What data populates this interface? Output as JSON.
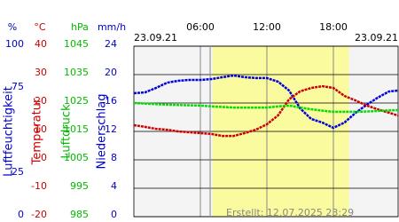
{
  "chart_data": {
    "type": "line",
    "date_left": "23.09.21",
    "date_right": "23.09.21",
    "footer": "Erstellt: 12.07.2025 23:29",
    "xlim": [
      0,
      24
    ],
    "xticks": [
      {
        "value": 6,
        "label": "06:00"
      },
      {
        "value": 12,
        "label": "12:00"
      },
      {
        "value": 18,
        "label": "18:00"
      }
    ],
    "daylight": [
      7.1,
      19.4
    ],
    "axes": [
      {
        "unit": "%",
        "label": "Luftfeuchtigkeit",
        "color": "#0000cc",
        "lim": [
          0,
          100
        ],
        "ticks": [
          0,
          25,
          75,
          100
        ]
      },
      {
        "unit": "°C",
        "label": "Temperatur",
        "color": "#cc0000",
        "lim": [
          -20,
          40
        ],
        "ticks": [
          -20,
          -10,
          0,
          10,
          20,
          30,
          40
        ]
      },
      {
        "unit": "hPa",
        "label": "Luftdruck",
        "color": "#00bb00",
        "lim": [
          985,
          1045
        ],
        "ticks": [
          985,
          995,
          1005,
          1015,
          1025,
          1035,
          1045
        ]
      },
      {
        "unit": "mm/h",
        "label": "Niederschlag",
        "color": "#0000cc",
        "lim": [
          0,
          24
        ],
        "ticks": [
          0,
          4,
          8,
          12,
          16,
          20,
          24
        ]
      }
    ],
    "x": [
      0,
      1,
      2,
      3,
      4,
      5,
      6,
      7,
      8,
      9,
      10,
      11,
      12,
      13,
      14,
      15,
      16,
      17,
      18,
      19,
      20,
      21,
      22,
      23,
      24
    ],
    "series": [
      {
        "axis": 0,
        "color": "#0000dd",
        "values": [
          72.4,
          72.9,
          75.5,
          78.6,
          79.7,
          80.2,
          80.2,
          80.7,
          81.8,
          82.8,
          81.8,
          81.3,
          81.3,
          79.2,
          74.0,
          63.5,
          57.3,
          55.2,
          52.1,
          55.2,
          60.9,
          65.6,
          69.8,
          73.4,
          74.0
        ]
      },
      {
        "axis": 1,
        "color": "#cc0000",
        "values": [
          12.2,
          11.6,
          10.9,
          10.6,
          10.0,
          9.7,
          9.4,
          9.1,
          8.4,
          8.4,
          9.4,
          10.6,
          12.5,
          15.6,
          21.3,
          24.1,
          25.3,
          25.9,
          25.3,
          22.5,
          20.9,
          19.1,
          17.8,
          16.6,
          15.6
        ]
      },
      {
        "axis": 2,
        "color": "#00dd00",
        "values": [
          1025.0,
          1024.8,
          1024.6,
          1024.4,
          1024.3,
          1024.2,
          1024.1,
          1023.8,
          1023.6,
          1023.4,
          1023.4,
          1023.4,
          1023.4,
          1023.8,
          1024.1,
          1023.4,
          1022.8,
          1022.3,
          1021.9,
          1021.9,
          1021.9,
          1022.0,
          1022.2,
          1022.4,
          1022.5
        ]
      }
    ]
  }
}
